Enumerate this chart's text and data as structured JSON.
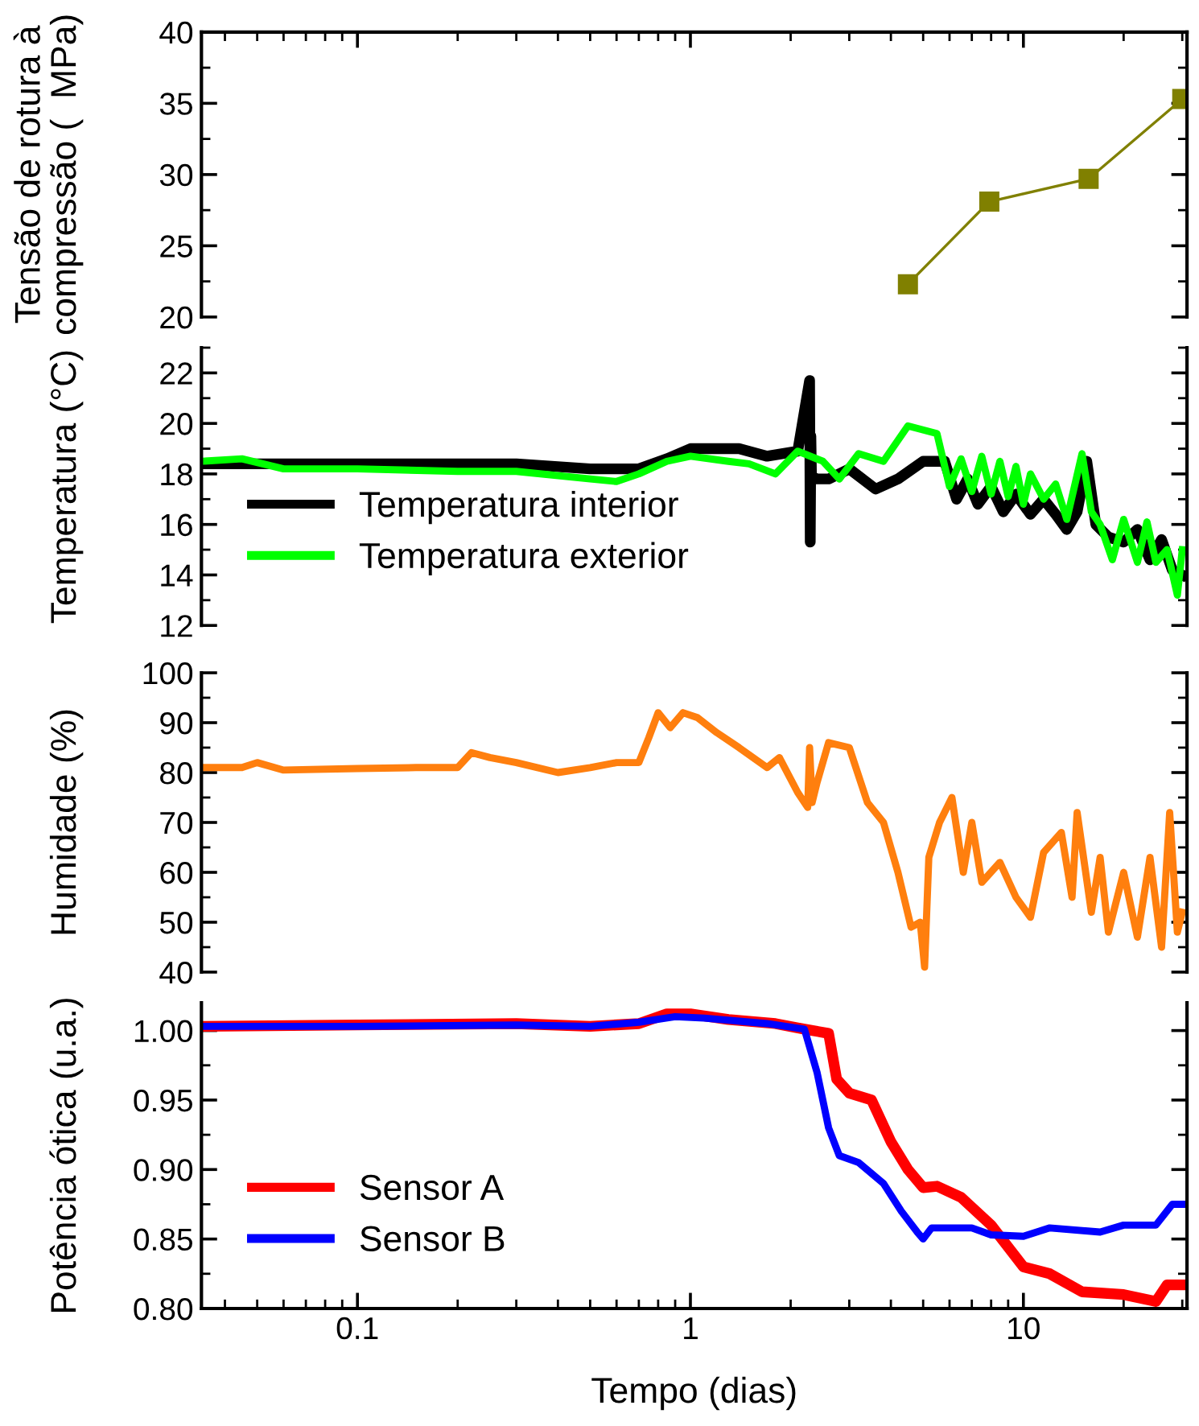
{
  "chart_data": [
    {
      "type": "line",
      "ylabel": "Tensão de rotura à\ncompressão (  MPa)",
      "log": "x",
      "xlim": [
        0.034,
        31
      ],
      "xticks": [
        0.1,
        1,
        10
      ],
      "ylim": [
        20,
        40
      ],
      "yticks": [
        20,
        25,
        30,
        35,
        40
      ],
      "tick_labels": "y",
      "marker": "square",
      "grid": false,
      "legend": false,
      "series": [
        {
          "color": "#808000",
          "x": [
            4.5,
            7.9,
            15.7,
            30
          ],
          "values": [
            22.3,
            28.1,
            29.7,
            35.3
          ]
        }
      ]
    },
    {
      "type": "line",
      "ylabel": "Temperatura (°C)",
      "log": "x",
      "xlim": [
        0.034,
        31
      ],
      "xticks": [
        0.1,
        1,
        10
      ],
      "ylim": [
        12,
        23
      ],
      "yticks": [
        12,
        14,
        16,
        18,
        20,
        22
      ],
      "tick_labels": "y",
      "marker": "none",
      "grid": false,
      "legend": "bottom left",
      "series": [
        {
          "name": "Temperatura interior",
          "color": "#000000",
          "x": [
            0.034,
            0.1,
            0.3,
            0.5,
            0.7,
            0.85,
            1.0,
            1.4,
            1.7,
            2.1,
            2.28,
            2.29,
            2.3,
            2.31,
            2.4,
            2.6,
            3.0,
            3.6,
            4.2,
            5.0,
            5.8,
            6.3,
            6.8,
            7.3,
            8.0,
            8.7,
            9.5,
            10.5,
            11.5,
            12.5,
            13.5,
            14.5,
            15.5,
            16.5,
            18.0,
            20.0,
            22.0,
            24.0,
            26.0,
            28.0,
            30.0
          ],
          "values": [
            18.4,
            18.4,
            18.4,
            18.2,
            18.2,
            18.6,
            19.0,
            19.0,
            18.7,
            18.9,
            21.7,
            15.3,
            19.5,
            17.9,
            17.8,
            17.8,
            18.2,
            17.4,
            17.8,
            18.5,
            18.5,
            17.0,
            17.8,
            16.8,
            17.5,
            16.5,
            17.2,
            16.4,
            17.0,
            16.4,
            15.8,
            16.5,
            18.5,
            16.0,
            15.5,
            15.3,
            15.8,
            14.6,
            15.4,
            14.2,
            14.0
          ]
        },
        {
          "name": "Temperatura exterior",
          "color": "#00ff00",
          "x": [
            0.034,
            0.045,
            0.06,
            0.1,
            0.2,
            0.3,
            0.5,
            0.6,
            0.7,
            0.85,
            1.0,
            1.3,
            1.5,
            1.8,
            2.1,
            2.5,
            2.8,
            3.2,
            3.8,
            4.5,
            5.5,
            6.0,
            6.5,
            7.0,
            7.5,
            8.0,
            8.5,
            9.0,
            9.5,
            10.0,
            10.5,
            11.5,
            12.5,
            13.5,
            15.0,
            16.0,
            17.0,
            18.5,
            20.0,
            22.0,
            23.5,
            25.0,
            27.0,
            29.0,
            30.0
          ],
          "values": [
            18.5,
            18.6,
            18.2,
            18.2,
            18.1,
            18.1,
            17.8,
            17.7,
            18.0,
            18.5,
            18.7,
            18.5,
            18.4,
            18.0,
            18.9,
            18.5,
            17.8,
            18.8,
            18.5,
            19.9,
            19.6,
            17.5,
            18.6,
            17.3,
            18.7,
            17.2,
            18.5,
            17.1,
            18.3,
            16.8,
            18.0,
            17.0,
            17.6,
            16.2,
            18.8,
            16.5,
            16.0,
            14.6,
            16.2,
            14.5,
            16.1,
            14.5,
            15.0,
            13.2,
            15.0
          ]
        }
      ]
    },
    {
      "type": "line",
      "ylabel": "Humidade (%)",
      "log": "x",
      "xlim": [
        0.034,
        31
      ],
      "xticks": [
        0.1,
        1,
        10
      ],
      "ylim": [
        40,
        100
      ],
      "yticks": [
        40,
        50,
        60,
        70,
        80,
        90,
        100
      ],
      "tick_labels": "y",
      "marker": "none",
      "grid": false,
      "legend": false,
      "series": [
        {
          "color": "#ff7f0e",
          "x": [
            0.034,
            0.045,
            0.05,
            0.06,
            0.1,
            0.15,
            0.2,
            0.22,
            0.25,
            0.3,
            0.4,
            0.5,
            0.6,
            0.7,
            0.75,
            0.8,
            0.87,
            0.95,
            1.05,
            1.2,
            1.4,
            1.7,
            1.85,
            2.1,
            2.25,
            2.28,
            2.32,
            2.4,
            2.6,
            3.0,
            3.4,
            3.8,
            4.2,
            4.6,
            4.9,
            5.05,
            5.2,
            5.6,
            6.1,
            6.6,
            7.0,
            7.5,
            8.5,
            9.5,
            10.5,
            11.5,
            13.0,
            14.0,
            14.5,
            16.0,
            17.0,
            18.0,
            20.0,
            22.0,
            24.0,
            26.0,
            27.5,
            29.0,
            30.0
          ],
          "values": [
            81,
            81,
            82,
            80.5,
            80.8,
            81,
            81,
            84,
            83,
            82,
            80,
            81,
            82,
            82,
            87,
            92,
            89,
            92,
            91,
            88,
            85,
            81,
            83,
            76,
            73,
            85,
            74,
            78,
            86,
            85,
            74,
            70,
            60,
            49,
            50,
            41,
            63,
            70,
            75,
            60,
            70,
            58,
            62,
            55,
            51,
            64,
            68,
            55,
            72,
            52,
            63,
            48,
            60,
            47,
            63,
            45,
            72,
            48,
            52
          ]
        }
      ]
    },
    {
      "type": "line",
      "ylabel": "Potência ótica (u.a.)",
      "xlabel": "Tempo (dias)",
      "log": "x",
      "xlim": [
        0.034,
        31
      ],
      "xticks": [
        0.1,
        1,
        10
      ],
      "ylim": [
        0.8,
        1.02
      ],
      "yticks": [
        {
          "value": 0.8,
          "label": "0.80"
        },
        0.85,
        {
          "value": 0.9,
          "label": "0.90"
        },
        0.95,
        {
          "value": 1.0,
          "label": "1.00"
        }
      ],
      "marker": "none",
      "grid": false,
      "legend": "bottom left",
      "series": [
        {
          "name": "Sensor A",
          "color": "#ff0000",
          "x": [
            0.034,
            0.1,
            0.3,
            0.5,
            0.7,
            0.85,
            1.0,
            1.3,
            1.8,
            2.2,
            2.6,
            2.75,
            3.0,
            3.5,
            4.0,
            4.5,
            5.0,
            5.5,
            6.5,
            8.0,
            10.0,
            12.0,
            15.0,
            20.0,
            25.0,
            27.0,
            30.0
          ],
          "values": [
            1.003,
            1.004,
            1.005,
            1.003,
            1.005,
            1.012,
            1.012,
            1.008,
            1.005,
            1.001,
            0.998,
            0.965,
            0.955,
            0.95,
            0.92,
            0.9,
            0.887,
            0.888,
            0.88,
            0.86,
            0.83,
            0.825,
            0.812,
            0.81,
            0.805,
            0.817,
            0.817
          ]
        },
        {
          "name": "Sensor B",
          "color": "#0000ff",
          "x": [
            0.034,
            0.1,
            0.3,
            0.5,
            0.7,
            0.9,
            1.1,
            1.7,
            2.2,
            2.4,
            2.6,
            2.8,
            3.2,
            3.8,
            4.3,
            4.8,
            5.0,
            5.3,
            7.0,
            8.0,
            10.0,
            12.0,
            17.0,
            20.0,
            25.0,
            28.0,
            30.0
          ],
          "values": [
            1.003,
            1.003,
            1.004,
            1.003,
            1.006,
            1.01,
            1.009,
            1.005,
            1.001,
            0.97,
            0.93,
            0.91,
            0.905,
            0.89,
            0.87,
            0.855,
            0.85,
            0.858,
            0.858,
            0.853,
            0.852,
            0.858,
            0.855,
            0.86,
            0.86,
            0.875,
            0.875
          ]
        }
      ]
    }
  ]
}
